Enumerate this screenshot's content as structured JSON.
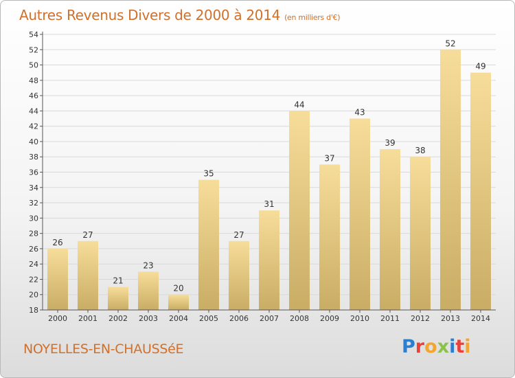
{
  "colors": {
    "title": "#d0702a",
    "bar_light": "#f7dd9a",
    "bar_dark": "#c9ad65",
    "grid": "#d9d9d9",
    "logo": [
      "#2a7fd0",
      "#e8433a",
      "#f2a531",
      "#8bc34a",
      "#2a7fd0",
      "#e8433a"
    ]
  },
  "chart_data": {
    "type": "bar",
    "title": "Autres Revenus Divers de 2000 à 2014",
    "subtitle": "(en milliers d'€)",
    "categories": [
      "2000",
      "2001",
      "2002",
      "2003",
      "2004",
      "2005",
      "2006",
      "2007",
      "2008",
      "2009",
      "2010",
      "2011",
      "2012",
      "2013",
      "2014"
    ],
    "values": [
      26,
      27,
      21,
      23,
      20,
      35,
      27,
      31,
      44,
      37,
      43,
      39,
      38,
      52,
      49
    ],
    "ylim": [
      18,
      54
    ],
    "yticks": [
      18,
      20,
      22,
      24,
      26,
      28,
      30,
      32,
      34,
      36,
      38,
      40,
      42,
      44,
      46,
      48,
      50,
      52,
      54
    ],
    "grid": true,
    "data_labels": true
  },
  "footer": {
    "commune": "NOYELLES-EN-CHAUSSéE",
    "logo": [
      "P",
      "r",
      "o",
      "x",
      "i",
      "t",
      "i"
    ]
  }
}
